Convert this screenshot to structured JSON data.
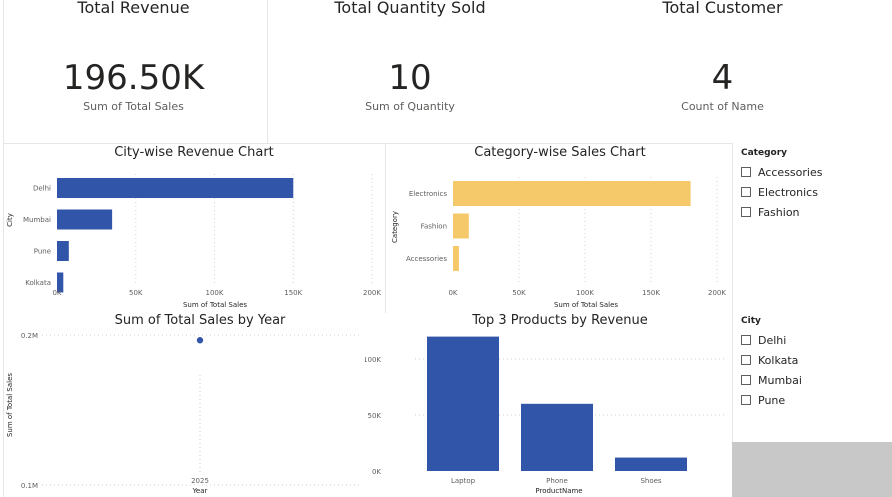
{
  "cards": [
    {
      "title": "Total Revenue",
      "value": "196.50K",
      "sub": "Sum of Total Sales"
    },
    {
      "title": "Total Quantity Sold",
      "value": "10",
      "sub": "Sum of Quantity"
    },
    {
      "title": "Total Customer",
      "value": "4",
      "sub": "Count of Name"
    }
  ],
  "slicers": {
    "category": {
      "title": "Category",
      "items": [
        "Accessories",
        "Electronics",
        "Fashion"
      ]
    },
    "city": {
      "title": "City",
      "items": [
        "Delhi",
        "Kolkata",
        "Mumbai",
        "Pune"
      ]
    }
  },
  "colors": {
    "blue": "#3055a9",
    "yellow": "#f5c96a"
  },
  "chart_data": [
    {
      "type": "bar",
      "orientation": "horizontal",
      "title": "City-wise Revenue Chart",
      "xlabel": "Sum of Total Sales",
      "ylabel": "City",
      "categories": [
        "Delhi",
        "Mumbai",
        "Pune",
        "Kolkata"
      ],
      "values": [
        150000,
        35000,
        7500,
        4000
      ],
      "xlim": [
        0,
        200000
      ],
      "ticks": [
        0,
        50000,
        100000,
        150000,
        200000
      ],
      "tick_labels": [
        "0K",
        "50K",
        "100K",
        "150K",
        "200K"
      ],
      "color": "#3055a9"
    },
    {
      "type": "bar",
      "orientation": "horizontal",
      "title": "Category-wise Sales Chart",
      "xlabel": "Sum of Total Sales",
      "ylabel": "Category",
      "categories": [
        "Electronics",
        "Fashion",
        "Accessories"
      ],
      "values": [
        180000,
        12000,
        4500
      ],
      "xlim": [
        0,
        200000
      ],
      "ticks": [
        0,
        50000,
        100000,
        150000,
        200000
      ],
      "tick_labels": [
        "0K",
        "50K",
        "100K",
        "150K",
        "200K"
      ],
      "color": "#f5c96a"
    },
    {
      "type": "scatter",
      "title": "Sum of Total Sales by Year",
      "xlabel": "Year",
      "ylabel": "Sum of Total Sales",
      "x": [
        "2025"
      ],
      "values": [
        196500
      ],
      "ylim": [
        100000,
        220000
      ],
      "ticks": [
        100000,
        200000
      ],
      "tick_labels": [
        "0.1M",
        "0.2M"
      ],
      "color": "#3055a9"
    },
    {
      "type": "bar",
      "title": "Top 3 Products by Revenue",
      "xlabel": "ProductName",
      "ylabel": "",
      "categories": [
        "Laptop",
        "Phone",
        "Shoes"
      ],
      "values": [
        120000,
        60000,
        12000
      ],
      "ylim": [
        0,
        130000
      ],
      "ticks": [
        0,
        50000,
        100000
      ],
      "tick_labels": [
        "0K",
        "50K",
        "100K"
      ],
      "color": "#3055a9"
    }
  ]
}
